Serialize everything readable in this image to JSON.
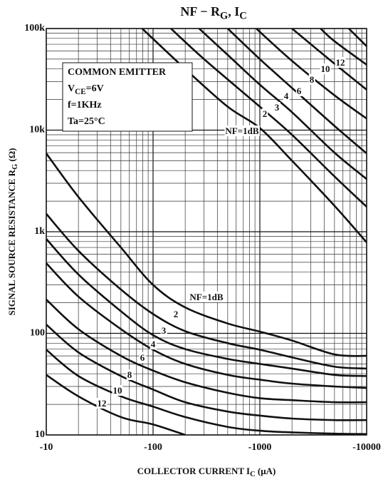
{
  "chart_data": {
    "type": "line",
    "title": [
      "NF − R",
      "G",
      ", I",
      "C"
    ],
    "x_label": [
      "COLLECTOR CURRENT  I",
      "C",
      "  (μA)"
    ],
    "y_label": [
      "SIGNAL SOURCE RESISTANCE  R",
      "G",
      "  (Ω)"
    ],
    "conditions": [
      [
        "COMMON EMITTER"
      ],
      [
        "V",
        "CE",
        "=6V"
      ],
      [
        "f=1KHz"
      ],
      [
        "Ta=25°C"
      ]
    ],
    "x_scale": "log",
    "y_scale": "log",
    "grid": true,
    "minor_grid": true,
    "xlim": [
      -10,
      -10000
    ],
    "xticks": [
      -10,
      -100,
      -1000,
      -10000
    ],
    "ylim": [
      10,
      100000
    ],
    "yticks": [
      10,
      100,
      {
        "value": 1000,
        "label": "1k"
      },
      {
        "value": 10000,
        "label": "10k"
      },
      {
        "value": 100000,
        "label": "100k"
      }
    ],
    "series": [
      {
        "name": "NF=1dB",
        "color": "#111111",
        "x": [
          -10,
          -20,
          -50,
          -100,
          -200,
          -500,
          -1000,
          -2000,
          -5000,
          -10000
        ],
        "values": [
          5900,
          2200,
          700,
          300,
          180,
          125,
          104,
          85,
          62,
          60
        ]
      },
      {
        "name": "2",
        "color": "#111111",
        "x": [
          -10,
          -20,
          -50,
          -100,
          -200,
          -500,
          -1000,
          -2000,
          -5000,
          -10000
        ],
        "values": [
          1500,
          650,
          270,
          155,
          105,
          80,
          69,
          58,
          47,
          45
        ]
      },
      {
        "name": "3",
        "color": "#111111",
        "x": [
          -10,
          -20,
          -50,
          -100,
          -200,
          -500,
          -1000,
          -2000,
          -5000,
          -10000
        ],
        "values": [
          850,
          380,
          165,
          96,
          70,
          56,
          50,
          45,
          39,
          38
        ]
      },
      {
        "name": "4",
        "color": "#111111",
        "x": [
          -10,
          -20,
          -50,
          -100,
          -200,
          -500,
          -1000,
          -2000,
          -5000,
          -10000
        ],
        "values": [
          490,
          230,
          110,
          69,
          50,
          39,
          35,
          32,
          30,
          29
        ]
      },
      {
        "name": "6",
        "color": "#111111",
        "x": [
          -10,
          -20,
          -50,
          -100,
          -200,
          -500,
          -1000,
          -2000,
          -5000,
          -10000
        ],
        "values": [
          215,
          110,
          60,
          43,
          33,
          26,
          23,
          22,
          21,
          21
        ]
      },
      {
        "name": "8",
        "color": "#111111",
        "x": [
          -10,
          -20,
          -50,
          -100,
          -200,
          -500,
          -1000,
          -2000,
          -5000,
          -10000
        ],
        "values": [
          122,
          65,
          38,
          28,
          21,
          17,
          15.5,
          14.5,
          14,
          14
        ]
      },
      {
        "name": "10",
        "color": "#111111",
        "x": [
          -10,
          -20,
          -50,
          -100,
          -200,
          -500,
          -1000,
          -2000,
          -5000,
          -10000
        ],
        "values": [
          69,
          38,
          24,
          19,
          15,
          12,
          11,
          10.6,
          10.3,
          10.2
        ]
      },
      {
        "name": "12",
        "color": "#111111",
        "x": [
          -10,
          -20,
          -50,
          -100,
          -200,
          -500,
          -1000,
          -2000,
          -5000,
          -10000
        ],
        "values": [
          39,
          24,
          15,
          12.7,
          10,
          null,
          null,
          null,
          null,
          null
        ]
      },
      {
        "name": "NF=1dB",
        "color": "#111111",
        "x": [
          -79,
          -200,
          -500,
          -1000,
          -2000,
          -5000,
          -10000
        ],
        "values": [
          100000,
          40000,
          17000,
          10500,
          5000,
          1800,
          785
        ]
      },
      {
        "name": "2",
        "color": "#111111",
        "x": [
          -147,
          -300,
          -1000,
          -2000,
          -5000,
          -10000
        ],
        "values": [
          100000,
          50000,
          17000,
          9000,
          3500,
          1760
        ]
      },
      {
        "name": "3",
        "color": "#111111",
        "x": [
          -270,
          -500,
          -1000,
          -2000,
          -5000,
          -10000
        ],
        "values": [
          100000,
          55000,
          28000,
          15000,
          6000,
          3300
        ]
      },
      {
        "name": "4",
        "color": "#111111",
        "x": [
          -500,
          -1000,
          -2000,
          -5000,
          -10000
        ],
        "values": [
          100000,
          50000,
          26000,
          11000,
          5900
        ]
      },
      {
        "name": "6",
        "color": "#111111",
        "x": [
          -925,
          -2000,
          -5000,
          -10000
        ],
        "values": [
          100000,
          48000,
          22000,
          13000
        ]
      },
      {
        "name": "8",
        "color": "#111111",
        "x": [
          -2000,
          -5000,
          -10000
        ],
        "values": [
          100000,
          45000,
          25000
        ]
      },
      {
        "name": "10",
        "color": "#111111",
        "x": [
          -3700,
          -5000,
          -10000
        ],
        "values": [
          100000,
          75000,
          44000
        ]
      },
      {
        "name": "12",
        "color": "#111111",
        "x": [
          -6800,
          -10000
        ],
        "values": [
          100000,
          67000
        ]
      }
    ]
  }
}
